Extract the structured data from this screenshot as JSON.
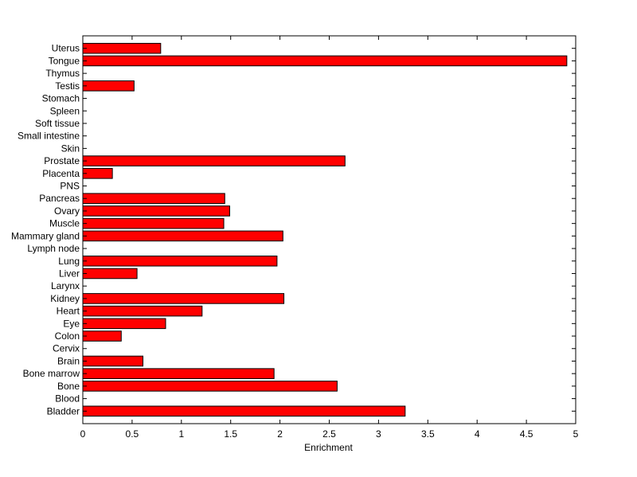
{
  "chart_data": {
    "type": "bar",
    "orientation": "horizontal",
    "title": "",
    "xlabel": "Enrichment",
    "ylabel": "",
    "xlim": [
      0,
      5
    ],
    "xticks": [
      "0",
      "0.5",
      "1",
      "1.5",
      "2",
      "2.5",
      "3",
      "3.5",
      "4",
      "4.5",
      "5"
    ],
    "grid": false,
    "legend": "none",
    "bar_color": "#ff0000",
    "edge_color": "#000000",
    "categories": [
      "Bladder",
      "Blood",
      "Bone",
      "Bone marrow",
      "Brain",
      "Cervix",
      "Colon",
      "Eye",
      "Heart",
      "Kidney",
      "Larynx",
      "Liver",
      "Lung",
      "Lymph node",
      "Mammary gland",
      "Muscle",
      "Ovary",
      "Pancreas",
      "PNS",
      "Placenta",
      "Prostate",
      "Skin",
      "Small intestine",
      "Soft tissue",
      "Spleen",
      "Stomach",
      "Testis",
      "Thymus",
      "Tongue",
      "Uterus"
    ],
    "values": [
      3.27,
      0,
      2.58,
      1.94,
      0.61,
      0,
      0.39,
      0.84,
      1.21,
      2.04,
      0,
      0.55,
      1.97,
      0,
      2.03,
      1.43,
      1.49,
      1.44,
      0,
      0.3,
      2.66,
      0,
      0,
      0,
      0,
      0,
      0.52,
      0,
      4.91,
      0.79
    ]
  }
}
